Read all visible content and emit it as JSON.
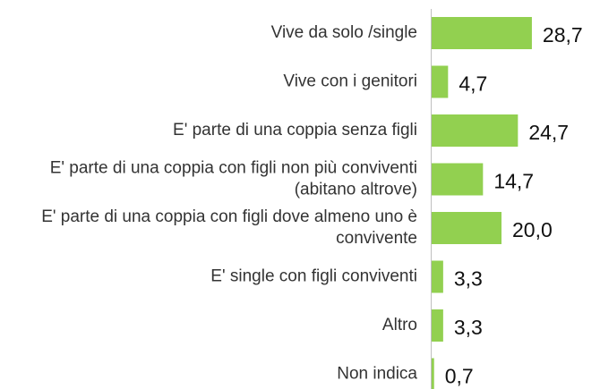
{
  "chart_data": {
    "type": "barh",
    "categories": [
      "Vive da solo /single",
      "Vive con i genitori",
      "E' parte di una coppia senza figli",
      "E' parte di una coppia con figli non più conviventi (abitano altrove)",
      "E' parte di una coppia con figli dove almeno uno è convivente",
      "E' single con figli conviventi",
      "Altro",
      "Non indica"
    ],
    "values": [
      28.7,
      4.7,
      24.7,
      14.7,
      20.0,
      3.3,
      3.3,
      0.7
    ],
    "value_labels": [
      "28,7",
      "4,7",
      "24,7",
      "14,7",
      "20,0",
      "3,3",
      "3,3",
      "0,7"
    ],
    "color": "#92d050"
  }
}
